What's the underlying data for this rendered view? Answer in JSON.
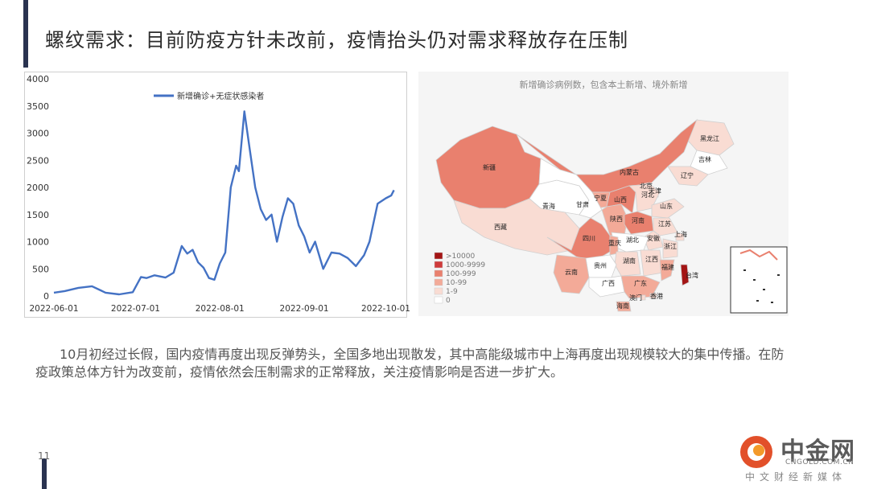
{
  "slide": {
    "title": "螺纹需求：目前防疫方针未改前，疫情抬头仍对需求释放存在压制",
    "body": "10月初经过长假，国内疫情再度出现反弹势头，全国多地出现散发，其中高能级城市中上海再度出现规模较大的集中传播。在防疫政策总体方针为改变前，疫情依然会压制需求的正常释放，关注疫情影响是否进一步扩大。",
    "page_number": "11",
    "accent_color": "#2a3350"
  },
  "watermark": {
    "name": "中金网",
    "url": "CNGOLD.COM.CN",
    "subtitle": "中文财经新媒体",
    "logo_color": "#e2502a"
  },
  "map": {
    "title": "新增确诊病例数，包含本土新增、境外新增",
    "provinces": [
      {
        "name": "黑龙江",
        "level": "1-9"
      },
      {
        "name": "吉林",
        "level": "0"
      },
      {
        "name": "辽宁",
        "level": "1-9"
      },
      {
        "name": "新疆",
        "level": "100-999"
      },
      {
        "name": "内蒙古",
        "level": "100-999"
      },
      {
        "name": "北京",
        "level": "1-9"
      },
      {
        "name": "天津",
        "level": "1-9"
      },
      {
        "name": "河北",
        "level": "1-9"
      },
      {
        "name": "宁夏",
        "level": "10-99"
      },
      {
        "name": "山西",
        "level": "100-999"
      },
      {
        "name": "山东",
        "level": "1-9"
      },
      {
        "name": "青海",
        "level": "0"
      },
      {
        "name": "甘肃",
        "level": "0"
      },
      {
        "name": "陕西",
        "level": "10-99"
      },
      {
        "name": "河南",
        "level": "100-999"
      },
      {
        "name": "江苏",
        "level": "1-9"
      },
      {
        "name": "西藏",
        "level": "1-9"
      },
      {
        "name": "安徽",
        "level": "1-9"
      },
      {
        "name": "上海",
        "level": "1-9"
      },
      {
        "name": "湖北",
        "level": "0"
      },
      {
        "name": "四川",
        "level": "100-999"
      },
      {
        "name": "重庆",
        "level": "10-99"
      },
      {
        "name": "浙江",
        "level": "1-9"
      },
      {
        "name": "湖南",
        "level": "1-9"
      },
      {
        "name": "江西",
        "level": "1-9"
      },
      {
        "name": "贵州",
        "level": "0"
      },
      {
        "name": "福建",
        "level": "10-99"
      },
      {
        "name": "云南",
        "level": "10-99"
      },
      {
        "name": "广西",
        "level": "0"
      },
      {
        "name": "广东",
        "level": "10-99"
      },
      {
        "name": "台湾",
        "level": ">10000"
      },
      {
        "name": "澳门",
        "level": "1-9"
      },
      {
        "name": "香港",
        "level": "1-9"
      },
      {
        "name": "海南",
        "level": "10-99"
      }
    ],
    "legend": [
      {
        "label": ">10000",
        "color": "#a31515"
      },
      {
        "label": "1000-9999",
        "color": "#cf3b3b"
      },
      {
        "label": "100-999",
        "color": "#e9806e"
      },
      {
        "label": "10-99",
        "color": "#f3aa98"
      },
      {
        "label": "1-9",
        "color": "#f9dcd3"
      },
      {
        "label": "0",
        "color": "#ffffff"
      }
    ]
  },
  "chart_data": {
    "type": "line",
    "series": [
      {
        "name": "新增确诊+无症状感染者",
        "color": "#4472c4",
        "x": [
          "2022-06-01",
          "2022-06-05",
          "2022-06-10",
          "2022-06-15",
          "2022-06-20",
          "2022-06-25",
          "2022-06-30",
          "2022-07-03",
          "2022-07-05",
          "2022-07-08",
          "2022-07-12",
          "2022-07-15",
          "2022-07-18",
          "2022-07-20",
          "2022-07-22",
          "2022-07-24",
          "2022-07-26",
          "2022-07-28",
          "2022-07-30",
          "2022-08-01",
          "2022-08-03",
          "2022-08-05",
          "2022-08-07",
          "2022-08-08",
          "2022-08-10",
          "2022-08-12",
          "2022-08-14",
          "2022-08-16",
          "2022-08-18",
          "2022-08-20",
          "2022-08-22",
          "2022-08-24",
          "2022-08-26",
          "2022-08-28",
          "2022-08-30",
          "2022-09-01",
          "2022-09-03",
          "2022-09-05",
          "2022-09-08",
          "2022-09-11",
          "2022-09-14",
          "2022-09-17",
          "2022-09-20",
          "2022-09-23",
          "2022-09-25",
          "2022-09-28",
          "2022-10-01",
          "2022-10-03",
          "2022-10-04"
        ],
        "values": [
          60,
          90,
          150,
          180,
          60,
          30,
          70,
          350,
          330,
          380,
          340,
          430,
          920,
          780,
          850,
          620,
          520,
          330,
          300,
          600,
          800,
          2000,
          2400,
          2300,
          3400,
          2700,
          2000,
          1600,
          1400,
          1500,
          1000,
          1450,
          1800,
          1700,
          1300,
          1100,
          800,
          1000,
          500,
          800,
          780,
          700,
          550,
          750,
          1000,
          1700,
          1800,
          1850,
          1950
        ]
      }
    ],
    "x_ticks": [
      "2022-06-01",
      "2022-07-01",
      "2022-08-01",
      "2022-09-01",
      "2022-10-01"
    ],
    "y_ticks": [
      0,
      500,
      1000,
      1500,
      2000,
      2500,
      3000,
      3500,
      4000
    ],
    "ylim": [
      0,
      4000
    ],
    "xlim": [
      "2022-06-01",
      "2022-10-05"
    ],
    "legend_position": "top",
    "grid": false
  }
}
